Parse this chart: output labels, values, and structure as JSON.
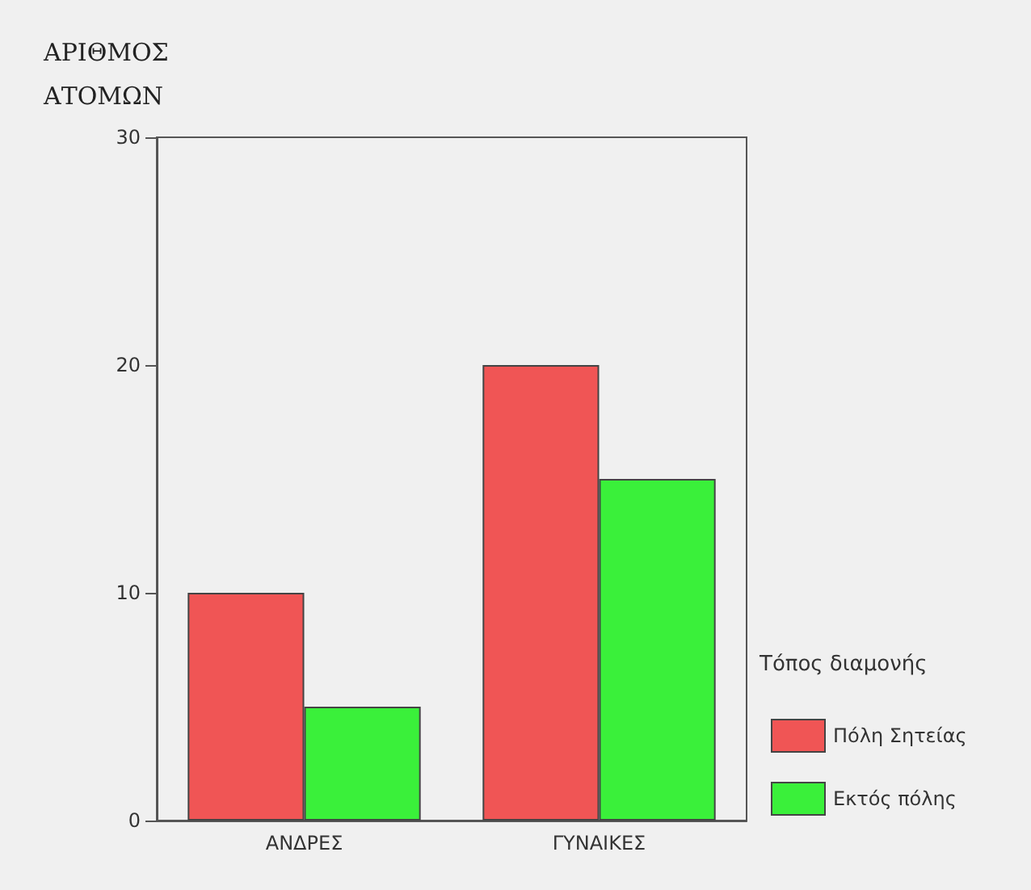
{
  "chart_data": {
    "type": "bar",
    "ylabel": "ΑΡΙΘΜΟΣ ΑΤΟΜΩΝ",
    "legend_title": "Τόπος διαμονής",
    "categories": [
      "ΑΝΔΡΕΣ",
      "ΓΥΝΑΙΚΕΣ"
    ],
    "series": [
      {
        "name": "Πόλη Σητείας",
        "color": "#f05555",
        "values": [
          10,
          20
        ]
      },
      {
        "name": "Εκτός πόλης",
        "color": "#3af03a",
        "values": [
          5,
          15
        ]
      }
    ],
    "ylim": [
      0,
      30
    ],
    "yticks": [
      0,
      10,
      20,
      30
    ],
    "grid": false,
    "legend": "bottom right"
  }
}
